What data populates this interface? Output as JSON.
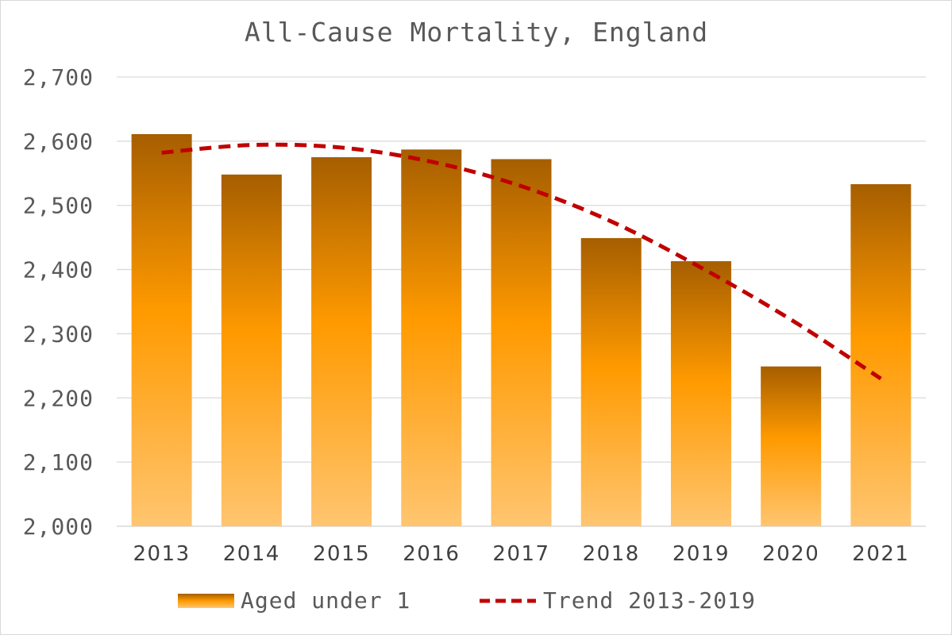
{
  "chart_data": {
    "type": "bar",
    "title": "All-Cause Mortality, England",
    "categories": [
      "2013",
      "2014",
      "2015",
      "2016",
      "2017",
      "2018",
      "2019",
      "2020",
      "2021"
    ],
    "series": [
      {
        "name": "Aged under 1",
        "type": "bar",
        "values": [
          2611,
          2548,
          2575,
          2587,
          2572,
          2449,
          2413,
          2249,
          2533
        ],
        "color_top": "#a65e00",
        "color_mid": "#ff9a00",
        "color_bottom": "#ffc570"
      },
      {
        "name": "Trend 2013-2019",
        "type": "line",
        "style": "dashed",
        "color": "#c00000",
        "values": [
          2582,
          2594,
          2590,
          2568,
          2530,
          2475,
          2403,
          2322,
          2230
        ]
      }
    ],
    "xlabel": "",
    "ylabel": "",
    "ylim": [
      2000,
      2700
    ],
    "yticks": [
      2000,
      2100,
      2200,
      2300,
      2400,
      2500,
      2600,
      2700
    ],
    "ytick_labels": [
      "2,000",
      "2,100",
      "2,200",
      "2,300",
      "2,400",
      "2,500",
      "2,600",
      "2,700"
    ],
    "grid": true,
    "legend_position": "bottom"
  }
}
